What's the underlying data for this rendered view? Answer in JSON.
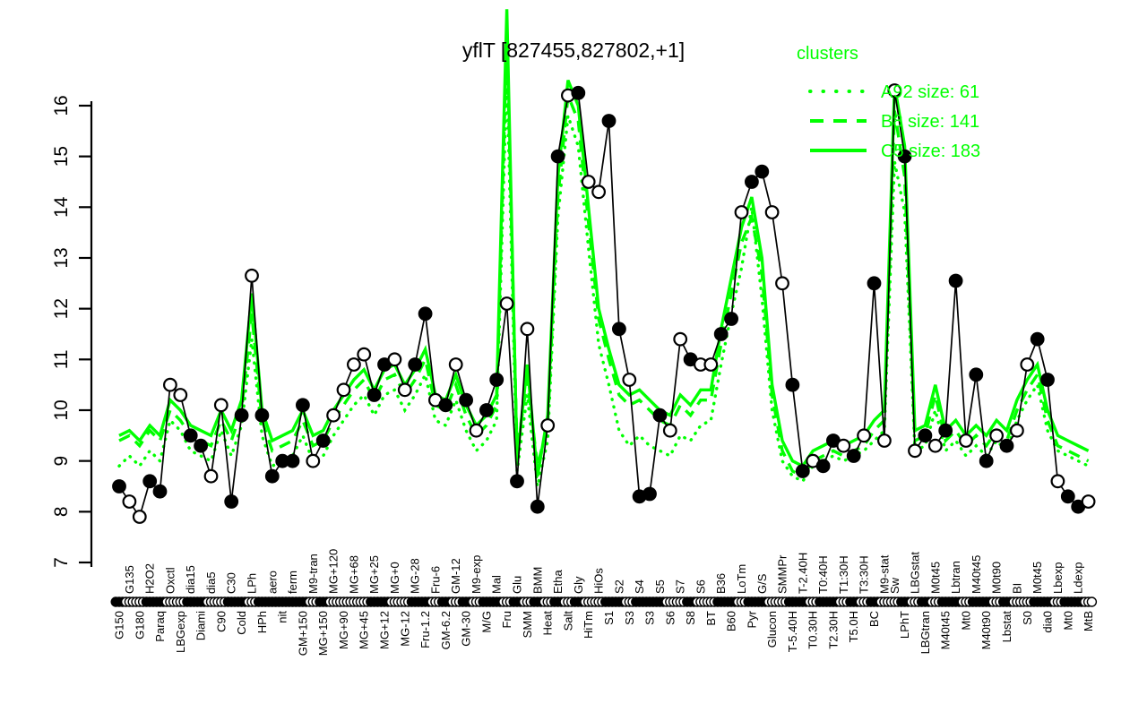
{
  "title": "yflT [827455,827802,+1]",
  "colors": {
    "cluster_green": "#00ff00",
    "profile_black": "#000000",
    "open_point_fill": "#ffffff",
    "background": "#ffffff"
  },
  "legend": {
    "header": "clusters",
    "items": [
      {
        "label": "A92 size: 61",
        "style": "dotted"
      },
      {
        "label": "B8 size: 141",
        "style": "dashed"
      },
      {
        "label": "C5 size: 183",
        "style": "solid"
      }
    ]
  },
  "chart_data": {
    "type": "line",
    "title": "yflT [827455,827802,+1]",
    "xlabel": "",
    "ylabel": "",
    "ylim": [
      7,
      16
    ],
    "yticks": [
      7,
      8,
      9,
      10,
      11,
      12,
      13,
      14,
      15,
      16
    ],
    "grid": false,
    "legend_position": "top-right",
    "conditions": [
      {
        "label": "G150",
        "row": "b"
      },
      {
        "label": "G135",
        "row": "t"
      },
      {
        "label": "G180",
        "row": "b"
      },
      {
        "label": "H2O2",
        "row": "t"
      },
      {
        "label": "Paraq",
        "row": "b"
      },
      {
        "label": "Oxctl",
        "row": "t"
      },
      {
        "label": "LBGexp",
        "row": "b"
      },
      {
        "label": "dia15",
        "row": "t"
      },
      {
        "label": "Diami",
        "row": "b"
      },
      {
        "label": "dia5",
        "row": "t"
      },
      {
        "label": "C90",
        "row": "b"
      },
      {
        "label": "C30",
        "row": "t"
      },
      {
        "label": "Cold",
        "row": "b"
      },
      {
        "label": "LPh",
        "row": "t"
      },
      {
        "label": "HPh",
        "row": "b"
      },
      {
        "label": "aero",
        "row": "t"
      },
      {
        "label": "nit",
        "row": "b"
      },
      {
        "label": "ferm",
        "row": "t"
      },
      {
        "label": "GM+150",
        "row": "b"
      },
      {
        "label": "M9-tran",
        "row": "t"
      },
      {
        "label": "MG+150",
        "row": "b"
      },
      {
        "label": "MG+120",
        "row": "t"
      },
      {
        "label": "MG+90",
        "row": "b"
      },
      {
        "label": "MG+68",
        "row": "t"
      },
      {
        "label": "MG+45",
        "row": "b"
      },
      {
        "label": "MG+25",
        "row": "t"
      },
      {
        "label": "MG+12",
        "row": "b"
      },
      {
        "label": "MG+0",
        "row": "t"
      },
      {
        "label": "MG-12",
        "row": "b"
      },
      {
        "label": "MG-28",
        "row": "t"
      },
      {
        "label": "Fru-1.2",
        "row": "b"
      },
      {
        "label": "Fru-6",
        "row": "t"
      },
      {
        "label": "GM-6.2",
        "row": "b"
      },
      {
        "label": "GM-12",
        "row": "t"
      },
      {
        "label": "GM-30",
        "row": "b"
      },
      {
        "label": "M9-exp",
        "row": "t"
      },
      {
        "label": "M/G",
        "row": "b"
      },
      {
        "label": "Mal",
        "row": "t"
      },
      {
        "label": "Fru",
        "row": "b"
      },
      {
        "label": "Glu",
        "row": "t"
      },
      {
        "label": "SMM",
        "row": "b"
      },
      {
        "label": "BMM",
        "row": "t"
      },
      {
        "label": "Heat",
        "row": "b"
      },
      {
        "label": "Etha",
        "row": "t"
      },
      {
        "label": "Salt",
        "row": "b"
      },
      {
        "label": "Gly",
        "row": "t"
      },
      {
        "label": "HiTm",
        "row": "b"
      },
      {
        "label": "HiOs",
        "row": "t"
      },
      {
        "label": "S1",
        "row": "b"
      },
      {
        "label": "S2",
        "row": "t"
      },
      {
        "label": "S3",
        "row": "b"
      },
      {
        "label": "S4",
        "row": "t"
      },
      {
        "label": "S3",
        "row": "b"
      },
      {
        "label": "S5",
        "row": "t"
      },
      {
        "label": "S6",
        "row": "b"
      },
      {
        "label": "S7",
        "row": "t"
      },
      {
        "label": "S8",
        "row": "b"
      },
      {
        "label": "S6",
        "row": "t"
      },
      {
        "label": "BT",
        "row": "b"
      },
      {
        "label": "B36",
        "row": "t"
      },
      {
        "label": "B60",
        "row": "b"
      },
      {
        "label": "LoTm",
        "row": "t"
      },
      {
        "label": "Pyr",
        "row": "b"
      },
      {
        "label": "G/S",
        "row": "t"
      },
      {
        "label": "Glucon",
        "row": "b"
      },
      {
        "label": "SMMPr",
        "row": "t"
      },
      {
        "label": "T-5.40H",
        "row": "b"
      },
      {
        "label": "T-2.40H",
        "row": "t"
      },
      {
        "label": "T0.30H",
        "row": "b"
      },
      {
        "label": "T0:40H",
        "row": "t"
      },
      {
        "label": "T2.30H",
        "row": "b"
      },
      {
        "label": "T1:30H",
        "row": "t"
      },
      {
        "label": "T5.0H",
        "row": "b"
      },
      {
        "label": "T3:30H",
        "row": "t"
      },
      {
        "label": "BC",
        "row": "b"
      },
      {
        "label": "M9-stat",
        "row": "t"
      },
      {
        "label": "Sw",
        "row": "t"
      },
      {
        "label": "LPhT",
        "row": "b"
      },
      {
        "label": "LBGstat",
        "row": "t"
      },
      {
        "label": "LBGtran",
        "row": "b"
      },
      {
        "label": "M0t45",
        "row": "t"
      },
      {
        "label": "M40t45",
        "row": "b"
      },
      {
        "label": "Lbtran",
        "row": "t"
      },
      {
        "label": "Mt0",
        "row": "b"
      },
      {
        "label": "M40t45",
        "row": "t"
      },
      {
        "label": "M40t90",
        "row": "b"
      },
      {
        "label": "M0t90",
        "row": "t"
      },
      {
        "label": "Lbstat",
        "row": "b"
      },
      {
        "label": "BI",
        "row": "t"
      },
      {
        "label": "S0",
        "row": "b"
      },
      {
        "label": "M0t45",
        "row": "t"
      },
      {
        "label": "dia0",
        "row": "b"
      },
      {
        "label": "Lbexp",
        "row": "t"
      },
      {
        "label": "Mt0",
        "row": "b"
      },
      {
        "label": "Ldexp",
        "row": "t"
      },
      {
        "label": "MtB",
        "row": "b"
      }
    ],
    "series": [
      {
        "name": "profile",
        "color": "#000000",
        "line": "solid",
        "markers": true,
        "values": [
          8.5,
          8.2,
          7.9,
          8.6,
          8.4,
          10.5,
          10.3,
          9.5,
          9.3,
          8.7,
          10.1,
          8.2,
          9.9,
          12.65,
          9.9,
          8.7,
          9.0,
          9.0,
          10.1,
          9.0,
          9.4,
          9.9,
          10.4,
          10.9,
          11.1,
          10.3,
          10.9,
          11.0,
          10.4,
          10.9,
          11.9,
          10.2,
          10.1,
          10.9,
          10.2,
          9.6,
          10.0,
          10.6,
          12.1,
          8.6,
          11.6,
          8.1,
          9.7,
          15.0,
          16.2,
          16.25,
          14.5,
          14.3,
          15.7,
          11.6,
          10.6,
          8.3,
          8.35,
          9.9,
          9.6,
          11.4,
          11.0,
          10.9,
          10.9,
          11.5,
          11.8,
          13.9,
          14.5,
          14.7,
          13.9,
          12.5,
          10.5,
          8.8,
          9.0,
          8.9,
          9.4,
          9.3,
          9.1,
          9.5,
          12.5,
          9.4,
          16.3,
          15.0,
          9.2,
          9.5,
          9.3,
          9.6,
          12.55,
          9.4,
          10.7,
          9.0,
          9.5,
          9.3,
          9.6,
          10.9,
          11.4,
          10.6,
          8.6,
          8.3,
          8.1,
          8.2
        ],
        "marker_filled": [
          1,
          0,
          0,
          1,
          1,
          0,
          0,
          1,
          1,
          0,
          0,
          1,
          1,
          0,
          1,
          1,
          1,
          1,
          1,
          0,
          1,
          0,
          0,
          0,
          0,
          1,
          1,
          0,
          0,
          1,
          1,
          0,
          1,
          0,
          1,
          0,
          1,
          1,
          0,
          1,
          0,
          1,
          0,
          1,
          0,
          1,
          0,
          0,
          1,
          1,
          0,
          1,
          1,
          1,
          0,
          0,
          1,
          0,
          0,
          1,
          1,
          0,
          1,
          1,
          0,
          0,
          1,
          1,
          0,
          1,
          1,
          0,
          1,
          0,
          1,
          0,
          0,
          1,
          0,
          1,
          0,
          1,
          1,
          0,
          1,
          1,
          0,
          1,
          0,
          0,
          1,
          1,
          0,
          1,
          1,
          0
        ]
      },
      {
        "name": "A92",
        "legend": "A92 size: 61",
        "size": 61,
        "color": "#00ff00",
        "line": "dotted",
        "values": [
          8.9,
          9.1,
          8.9,
          9.2,
          9.0,
          9.8,
          9.6,
          9.2,
          9.1,
          9.0,
          9.6,
          9.1,
          9.7,
          11.4,
          9.5,
          8.9,
          9.0,
          9.1,
          9.5,
          9.0,
          9.1,
          9.5,
          9.8,
          10.1,
          10.3,
          9.9,
          10.3,
          10.4,
          10.0,
          10.3,
          10.7,
          9.8,
          9.7,
          10.2,
          9.6,
          9.2,
          9.4,
          9.8,
          16.6,
          8.8,
          10.3,
          8.5,
          9.4,
          13.8,
          15.8,
          15.2,
          13.2,
          11.3,
          10.5,
          9.6,
          9.3,
          9.5,
          9.3,
          9.2,
          9.1,
          9.5,
          9.4,
          9.7,
          9.8,
          10.9,
          11.9,
          12.8,
          14.0,
          12.2,
          10.0,
          9.0,
          8.7,
          8.6,
          8.9,
          9.0,
          9.1,
          9.0,
          9.1,
          9.2,
          9.4,
          9.6,
          14.9,
          13.9,
          9.2,
          9.3,
          10.0,
          9.2,
          9.4,
          9.1,
          9.3,
          9.1,
          9.4,
          9.2,
          9.8,
          10.2,
          10.5,
          9.6,
          9.2,
          9.1,
          9.0,
          8.9
        ]
      },
      {
        "name": "B8",
        "legend": "B8 size: 141",
        "size": 141,
        "color": "#00ff00",
        "line": "dashed",
        "values": [
          9.4,
          9.5,
          9.3,
          9.6,
          9.4,
          10.0,
          9.8,
          9.5,
          9.4,
          9.3,
          9.8,
          9.4,
          10.0,
          11.9,
          9.8,
          9.2,
          9.3,
          9.4,
          9.8,
          9.3,
          9.4,
          9.8,
          10.1,
          10.4,
          10.6,
          10.2,
          10.6,
          10.7,
          10.3,
          10.6,
          11.0,
          10.1,
          10.0,
          10.5,
          9.9,
          9.5,
          9.7,
          10.1,
          17.4,
          9.2,
          10.6,
          8.9,
          9.7,
          14.2,
          16.2,
          15.7,
          13.7,
          11.8,
          11.0,
          10.3,
          10.1,
          10.2,
          10.0,
          9.8,
          9.7,
          10.1,
          9.9,
          10.2,
          10.2,
          11.3,
          12.3,
          13.3,
          13.8,
          12.7,
          10.3,
          9.2,
          8.8,
          8.7,
          9.0,
          9.1,
          9.2,
          9.1,
          9.2,
          9.3,
          9.6,
          9.8,
          15.9,
          14.6,
          9.4,
          9.5,
          10.3,
          9.4,
          9.6,
          9.3,
          9.5,
          9.3,
          9.6,
          9.4,
          10.0,
          10.4,
          10.7,
          9.8,
          9.3,
          9.2,
          9.1,
          9.0
        ]
      },
      {
        "name": "C5",
        "legend": "C5 size: 183",
        "size": 183,
        "color": "#00ff00",
        "line": "solid",
        "values": [
          9.5,
          9.6,
          9.4,
          9.7,
          9.5,
          10.2,
          10.0,
          9.7,
          9.6,
          9.5,
          10.0,
          9.6,
          10.2,
          12.3,
          10.0,
          9.4,
          9.5,
          9.6,
          10.0,
          9.5,
          9.6,
          10.0,
          10.3,
          10.6,
          10.8,
          10.4,
          10.8,
          10.9,
          10.5,
          10.8,
          11.2,
          10.3,
          10.2,
          10.7,
          10.1,
          9.7,
          9.9,
          10.3,
          17.9,
          9.0,
          10.9,
          8.7,
          9.9,
          14.6,
          16.5,
          16.0,
          14.0,
          12.0,
          11.2,
          10.5,
          10.3,
          10.4,
          10.2,
          10.0,
          9.9,
          10.3,
          10.1,
          10.4,
          10.4,
          11.6,
          12.6,
          13.6,
          14.2,
          13.0,
          10.5,
          9.4,
          9.0,
          8.9,
          9.2,
          9.3,
          9.4,
          9.3,
          9.4,
          9.5,
          9.8,
          10.0,
          16.4,
          15.2,
          9.6,
          9.7,
          10.5,
          9.6,
          9.8,
          9.5,
          9.7,
          9.5,
          9.8,
          9.6,
          10.2,
          10.6,
          10.9,
          10.0,
          9.5,
          9.4,
          9.3,
          9.2
        ]
      }
    ]
  }
}
